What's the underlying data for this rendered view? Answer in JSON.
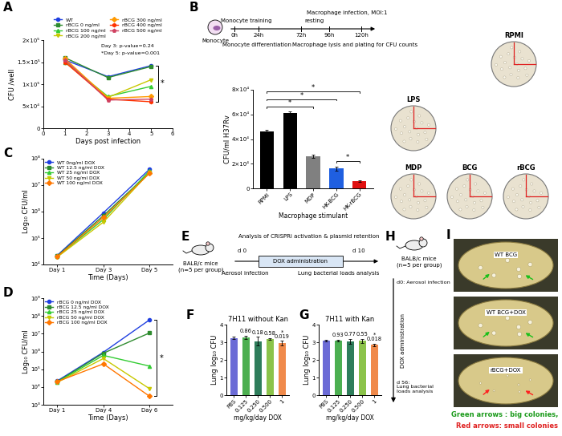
{
  "panel_labels": [
    "A",
    "B",
    "C",
    "D",
    "E",
    "F",
    "G",
    "H",
    "I"
  ],
  "chart_data": [
    {
      "type": "line",
      "x": [
        1,
        3,
        5
      ],
      "xlim": [
        0,
        6
      ],
      "xticks": [
        0,
        1,
        2,
        3,
        4,
        5,
        6
      ],
      "ylim": [
        0,
        200000
      ],
      "yticks": [
        0,
        {
          "value": 50000,
          "label": "5×10⁴"
        },
        {
          "value": 100000,
          "label": "1×10⁵"
        },
        {
          "value": 150000,
          "label": "1.5×10⁵"
        },
        {
          "value": 200000,
          "label": "2×10⁵"
        }
      ],
      "xlabel": "Days post infection",
      "ylabel": "CFU /well",
      "legend": "top",
      "annotations": [
        "Day 3: p-value=0.24",
        "*Day 5: p-value=0.001"
      ],
      "significance": "*",
      "series": [
        {
          "name": "WT",
          "color": "#1f3fe0",
          "marker": "circle",
          "values": [
            155000,
            117000,
            142000
          ]
        },
        {
          "name": "rBCG 0 ng/ml",
          "color": "#2e8b2e",
          "marker": "square",
          "values": [
            160000,
            115000,
            140000
          ]
        },
        {
          "name": "rBCG 100 ng/ml",
          "color": "#33cc33",
          "marker": "triangle",
          "values": [
            150000,
            72000,
            95000
          ]
        },
        {
          "name": "rBCG 200 ng/ml",
          "color": "#c8c800",
          "marker": "triangle_down",
          "values": [
            152000,
            70000,
            110000
          ]
        },
        {
          "name": "rBCG 300 ng/ml",
          "color": "#ff9900",
          "marker": "diamond",
          "values": [
            158000,
            68000,
            72000
          ]
        },
        {
          "name": "rBCG 400 ng/ml",
          "color": "#ff3300",
          "marker": "hexagon",
          "values": [
            150000,
            66000,
            60000
          ]
        },
        {
          "name": "rBCG 500 ng/ml",
          "color": "#d04060",
          "marker": "pentagon",
          "values": [
            155000,
            64000,
            66000
          ]
        }
      ]
    },
    {
      "type": "bar",
      "categories": [
        "RPMI",
        "LPS",
        "MDP",
        "HK-BCG",
        "HK-rBCG"
      ],
      "values": [
        46000,
        61000,
        26000,
        16000,
        6000
      ],
      "errors": [
        1200,
        1500,
        1000,
        1800,
        800
      ],
      "colors": [
        "#000000",
        "#000000",
        "#808080",
        "#1f5fe0",
        "#e01010"
      ],
      "ylim": [
        0,
        80000
      ],
      "yticks": [
        0,
        {
          "value": 20000,
          "label": "2×10⁴"
        },
        {
          "value": 40000,
          "label": "4×10⁴"
        },
        {
          "value": 60000,
          "label": "6×10⁴"
        },
        {
          "value": 80000,
          "label": "8×10⁴"
        }
      ],
      "xlabel": "Macrophage stimulant",
      "ylabel": "CFU/ml H37Rv",
      "comparisons": [
        {
          "between": [
            "RPMI",
            "MDP"
          ],
          "label": "*"
        },
        {
          "between": [
            "RPMI",
            "HK-BCG"
          ],
          "label": "*"
        },
        {
          "between": [
            "RPMI",
            "HK-rBCG"
          ],
          "label": "*"
        },
        {
          "between": [
            "HK-BCG",
            "HK-rBCG"
          ],
          "label": "*"
        }
      ]
    },
    {
      "type": "line",
      "log": "y",
      "categories": [
        "Day 1",
        "Day 3",
        "Day 5"
      ],
      "ylim": [
        10000,
        100000000
      ],
      "yticks": [
        {
          "value": 10000,
          "label": "10⁴"
        },
        {
          "value": 100000,
          "label": "10⁵"
        },
        {
          "value": 1000000,
          "label": "10⁶"
        },
        {
          "value": 10000000,
          "label": "10⁷"
        },
        {
          "value": 100000000,
          "label": "10⁸"
        }
      ],
      "xlabel": "Time (Days)",
      "ylabel": "Log₁₀ CFU/ml",
      "legend": "upper left",
      "series": [
        {
          "name": "WT 0ng/ml DOX",
          "color": "#1f3fe0",
          "marker": "circle",
          "values": [
            22000,
            900000,
            40000000
          ]
        },
        {
          "name": "WT 12.5 ng/ml DOX",
          "color": "#2e8b2e",
          "marker": "square",
          "values": [
            21000,
            700000,
            30000000
          ]
        },
        {
          "name": "WT 25 ng/ml DOX",
          "color": "#33cc33",
          "marker": "triangle",
          "values": [
            20000,
            500000,
            35000000
          ]
        },
        {
          "name": "WT 50 ng/ml DOX",
          "color": "#c8c800",
          "marker": "triangle_down",
          "values": [
            19000,
            400000,
            30000000
          ]
        },
        {
          "name": "WT 100 ng/ml DOX",
          "color": "#ff7700",
          "marker": "diamond",
          "values": [
            20000,
            600000,
            28000000
          ]
        }
      ]
    },
    {
      "type": "line",
      "log": "y",
      "categories": [
        "Day 1",
        "Day 4",
        "Day 6"
      ],
      "ylim": [
        1000,
        1000000000
      ],
      "yticks": [
        {
          "value": 1000,
          "label": "10³"
        },
        {
          "value": 10000,
          "label": "10⁴"
        },
        {
          "value": 100000,
          "label": "10⁵"
        },
        {
          "value": 1000000,
          "label": "10⁶"
        },
        {
          "value": 10000000,
          "label": "10⁷"
        },
        {
          "value": 100000000,
          "label": "10⁸"
        },
        {
          "value": 1000000000,
          "label": "10⁹"
        }
      ],
      "xlabel": "Time (Days)",
      "ylabel": "Log₁₀ CFU/ml",
      "legend": "upper left",
      "significance": "*",
      "series": [
        {
          "name": "rBCG 0 ng/ml DOX",
          "color": "#1f3fe0",
          "marker": "circle",
          "values": [
            22000,
            900000,
            60000000
          ]
        },
        {
          "name": "rBCG 12.5 ng/ml DOX",
          "color": "#2e8b2e",
          "marker": "square",
          "values": [
            20000,
            800000,
            11000000
          ]
        },
        {
          "name": "rBCG 25 ng/ml DOX",
          "color": "#33cc33",
          "marker": "triangle",
          "values": [
            19000,
            600000,
            150000
          ]
        },
        {
          "name": "rBCG 50 ng/ml DOX",
          "color": "#c8c800",
          "marker": "triangle_down",
          "values": [
            18000,
            400000,
            8000
          ]
        },
        {
          "name": "rBCG 100 ng/ml DOX",
          "color": "#ff7700",
          "marker": "diamond",
          "values": [
            20000,
            200000,
            3000
          ]
        }
      ]
    },
    {
      "type": "bar",
      "title": "7H11 without Kan",
      "categories": [
        "PBS",
        "0.125",
        "0.250",
        "0.500",
        "1"
      ],
      "values": [
        3.25,
        3.28,
        3.05,
        3.2,
        2.95
      ],
      "errors": [
        0.05,
        0.1,
        0.25,
        0.05,
        0.12
      ],
      "colors": [
        "#6b6bd6",
        "#4caf50",
        "#2e7d5b",
        "#8bc34a",
        "#f08a4b"
      ],
      "ylim": [
        0,
        4
      ],
      "yticks": [
        0,
        1,
        2,
        3,
        4
      ],
      "xlabel": "mg/kg/day DOX",
      "ylabel": "Lung log₁₀ CFU",
      "p_values": [
        {
          "category": "0.125",
          "label": "0.86"
        },
        {
          "category": "0.250",
          "label": "0.18"
        },
        {
          "category": "0.500",
          "label": "0.58"
        },
        {
          "category": "1",
          "label": "*\n0.019"
        }
      ]
    },
    {
      "type": "bar",
      "title": "7H11 with Kan",
      "categories": [
        "PBS",
        "0.125",
        "0.250",
        "0.500",
        "1"
      ],
      "values": [
        3.1,
        3.1,
        3.05,
        3.08,
        2.85
      ],
      "errors": [
        0.05,
        0.05,
        0.15,
        0.12,
        0.06
      ],
      "colors": [
        "#6b6bd6",
        "#4caf50",
        "#2e7d5b",
        "#8bc34a",
        "#f08a4b"
      ],
      "ylim": [
        0,
        4
      ],
      "yticks": [
        0,
        1,
        2,
        3,
        4
      ],
      "xlabel": "mg/kg/day DOX",
      "ylabel": "Lung log₁₀ CFU",
      "p_values": [
        {
          "category": "0.125",
          "label": "0.93"
        },
        {
          "category": "0.250",
          "label": "0.77"
        },
        {
          "category": "0.500",
          "label": "0.55"
        },
        {
          "category": "1",
          "label": "*\n0.018"
        }
      ]
    }
  ],
  "diagram_B": {
    "cell": "Monocyte",
    "timeline": [
      "0h",
      "24h",
      "72h",
      "96h",
      "120h"
    ],
    "above": [
      "Monocyte training",
      "resting",
      "Macrophage infection, MOI:1"
    ],
    "below": [
      "Monocyte differentiation",
      "Macrophage lysis and plating for CFU counts"
    ]
  },
  "plates_B": [
    "RPMI",
    "LPS",
    "MDP",
    "BCG",
    "rBCG"
  ],
  "diagram_E": {
    "title": "Analysis of CRISPRi activation & plasmid retention",
    "mice": [
      "BALB/c mice",
      "(n=5 per group)"
    ],
    "days": [
      "d 0",
      "d 10"
    ],
    "treatment": "DOX administration",
    "events": [
      "Aerosol infection",
      "Lung bacterial loads analysis"
    ]
  },
  "diagram_H": {
    "mice": [
      "BALB/c mice",
      "(n=5 per group)"
    ],
    "start": "d0: Aerosol infection",
    "treatment": "DOX administration",
    "end": "d 56:\nLung bacterial\nloads analysis"
  },
  "plates_I": {
    "labels": [
      "WT BCG",
      "WT BCG+DOX",
      "rBCG+DOX"
    ],
    "caption": [
      {
        "text": "Green arrows : big colonies,",
        "color": "#1a9a1a"
      },
      {
        "text": "Red arrows: small colonies",
        "color": "#e02020"
      }
    ]
  }
}
